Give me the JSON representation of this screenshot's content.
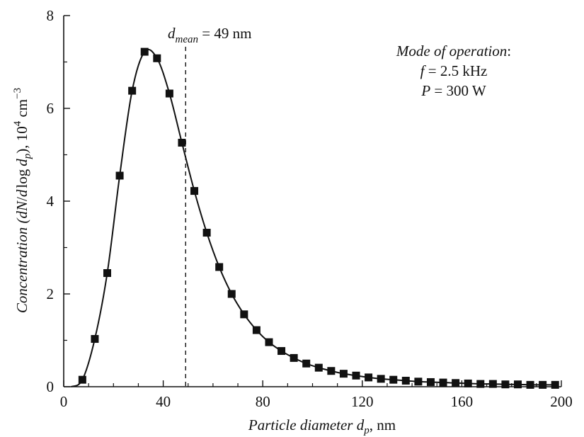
{
  "chart_data": {
    "type": "line",
    "xlabel": {
      "main": "Particle diameter ",
      "var": "d",
      "sub": "p",
      "unit": ", nm"
    },
    "ylabel": {
      "main": "Concentration (",
      "var1": "dN",
      "slash": "/",
      "var2": "d",
      "log": "log",
      "var3": "d",
      "sub": "p",
      "close": "), 10",
      "sup": "4",
      "unit": " cm",
      "sup2": "−3"
    },
    "xlim": [
      0,
      200
    ],
    "ylim": [
      0,
      8
    ],
    "x_ticks": [
      0,
      40,
      80,
      120,
      160,
      200
    ],
    "y_ticks": [
      0,
      2,
      4,
      6,
      8
    ],
    "grid": false,
    "series": [
      {
        "marker": "square",
        "color": "#111111",
        "x": [
          7.5,
          12.5,
          17.5,
          22.5,
          27.5,
          32.5,
          37.5,
          42.5,
          47.5,
          52.5,
          57.5,
          62.5,
          67.5,
          72.5,
          77.5,
          82.5,
          87.5,
          92.5,
          97.5,
          102.5,
          107.5,
          112.5,
          117.5,
          122.5,
          127.5,
          132.5,
          137.5,
          142.5,
          147.5,
          152.5,
          157.5,
          162.5,
          167.5,
          172.5,
          177.5,
          182.5,
          187.5,
          192.5,
          197.5
        ],
        "y": [
          0.15,
          1.03,
          2.45,
          4.55,
          6.38,
          7.22,
          7.08,
          6.32,
          5.26,
          4.22,
          3.32,
          2.58,
          2.0,
          1.56,
          1.22,
          0.96,
          0.77,
          0.62,
          0.5,
          0.41,
          0.34,
          0.28,
          0.24,
          0.2,
          0.17,
          0.15,
          0.13,
          0.11,
          0.1,
          0.09,
          0.08,
          0.07,
          0.06,
          0.06,
          0.05,
          0.05,
          0.04,
          0.04,
          0.04
        ]
      }
    ],
    "curve_start": [
      3,
      0
    ],
    "mean_line": {
      "x": 49,
      "label_var": "d",
      "label_sub": "mean",
      "label_rest": " = 49 nm"
    },
    "annotation": {
      "line1": "Mode of operation",
      "line1_colon": ":",
      "line2_var": "f",
      "line2_rest": " = 2.5 kHz",
      "line3_var": "P",
      "line3_rest": " = 300 W"
    }
  }
}
